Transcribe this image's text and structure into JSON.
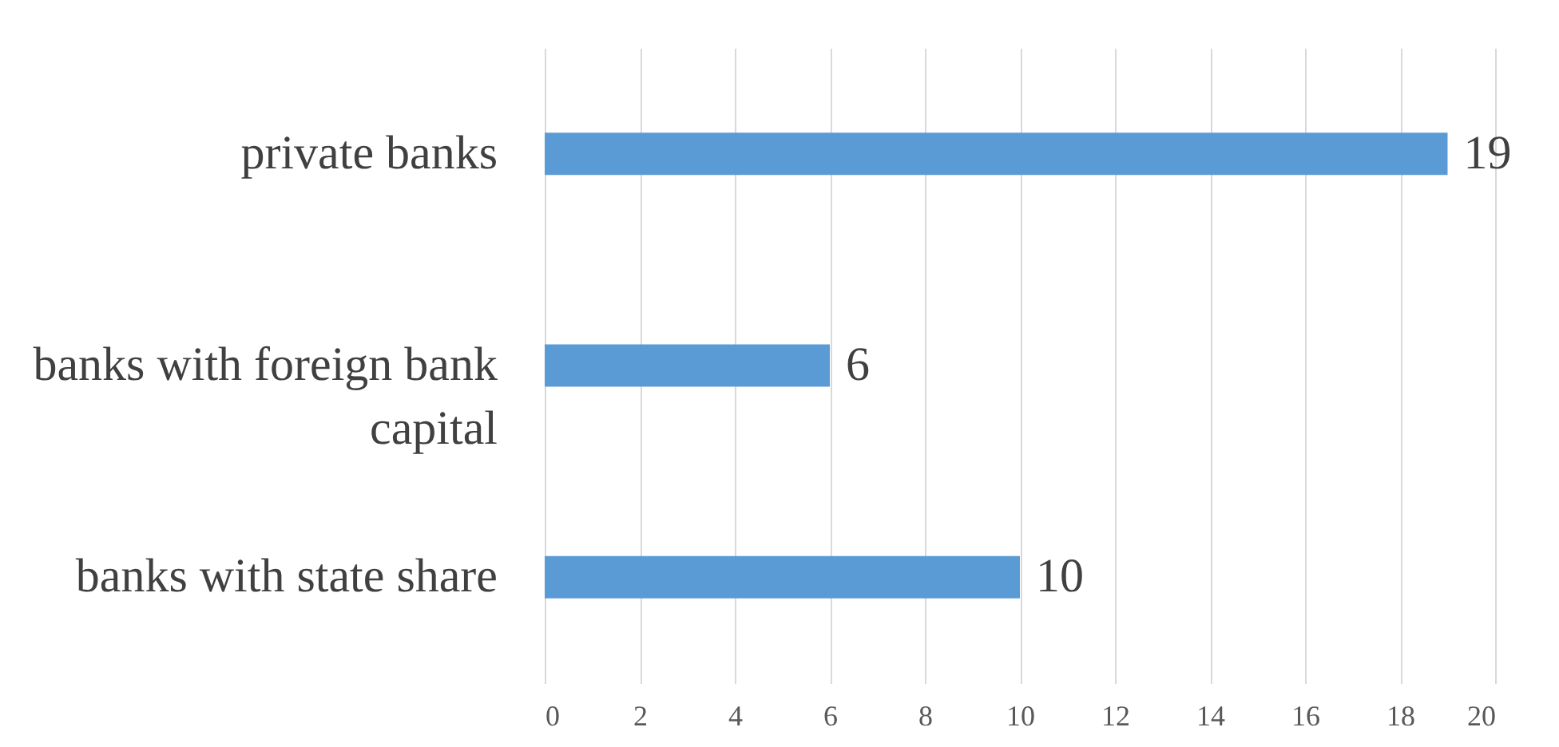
{
  "chart_data": {
    "type": "bar",
    "orientation": "horizontal",
    "categories": [
      "private banks",
      "banks with foreign bank capital",
      "banks with state share"
    ],
    "values": [
      19,
      6,
      10
    ],
    "color": "#5b9bd5",
    "xlim": [
      0,
      20
    ],
    "xticks": [
      0,
      2,
      4,
      6,
      8,
      10,
      12,
      14,
      16,
      18,
      20
    ],
    "grid": "x",
    "data_labels": true
  }
}
